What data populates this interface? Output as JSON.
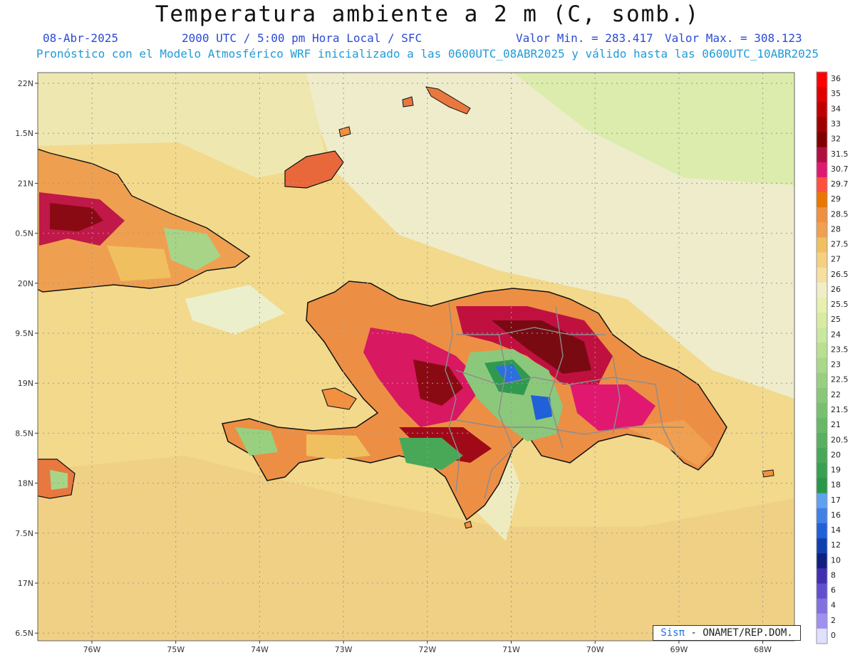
{
  "header": {
    "title": "Temperatura ambiente a 2 m (C, somb.)",
    "date": "08-Abr-2025",
    "time": "2000 UTC / 5:00 pm Hora Local / SFC",
    "min_label": "Valor Min. = 283.417",
    "max_label": "Valor Max. = 308.123",
    "forecast_line": "Pronóstico con el Modelo Atmosférico WRF inicializado a las 0600UTC_08ABR2025 y válido hasta las  0600UTC_10ABR2025"
  },
  "axes": {
    "lat_labels": [
      "22N",
      "1.5N",
      "21N",
      "0.5N",
      "20N",
      "9.5N",
      "19N",
      "8.5N",
      "18N",
      "7.5N",
      "17N",
      "6.5N"
    ],
    "lat_values": [
      22,
      21.5,
      21,
      20.5,
      20,
      19.5,
      19,
      18.5,
      18,
      17.5,
      17,
      16.5
    ],
    "lon_labels": [
      "76W",
      "75W",
      "74W",
      "73W",
      "72W",
      "71W",
      "70W",
      "69W",
      "68W"
    ],
    "lon_values": [
      -76,
      -75,
      -74,
      -73,
      -72,
      -71,
      -70,
      -69,
      -68
    ]
  },
  "colorbar": {
    "labels": [
      "36",
      "35",
      "34",
      "33",
      "32",
      "31.5",
      "30.7",
      "29.7",
      "29",
      "28.5",
      "28",
      "27.5",
      "27",
      "26.5",
      "26",
      "25.5",
      "25",
      "24",
      "23.5",
      "23",
      "22.5",
      "22",
      "21.5",
      "21",
      "20.5",
      "20",
      "19",
      "18",
      "17",
      "16",
      "14",
      "12",
      "10",
      "8",
      "6",
      "4",
      "2",
      "0"
    ],
    "colors": [
      "#ff0000",
      "#e00000",
      "#c00000",
      "#a00000",
      "#800000",
      "#b01040",
      "#e01870",
      "#ff5040",
      "#e87800",
      "#f09040",
      "#f0a050",
      "#f0c060",
      "#f5d080",
      "#f5e0a0",
      "#f0eec8",
      "#e8f0b0",
      "#d8eca0",
      "#c8e8a0",
      "#b8e090",
      "#a8d888",
      "#98d080",
      "#88c878",
      "#78c070",
      "#68b868",
      "#58b060",
      "#48a858",
      "#38a050",
      "#289848",
      "#60a0f0",
      "#4080e8",
      "#2060d8",
      "#1040b0",
      "#102080",
      "#4030b0",
      "#6050d0",
      "#8070e0",
      "#a090f0",
      "#e0e0ff"
    ]
  },
  "colors": {
    "sea_warm": "#f3d487",
    "sea_mild": "#f1e3a6",
    "sea_cool": "#eeeecb",
    "coast": "#111111",
    "borders": "#8c8c8c"
  },
  "credit": {
    "brand": "Sisπ",
    "text": " - ONAMET/REP.DOM."
  }
}
